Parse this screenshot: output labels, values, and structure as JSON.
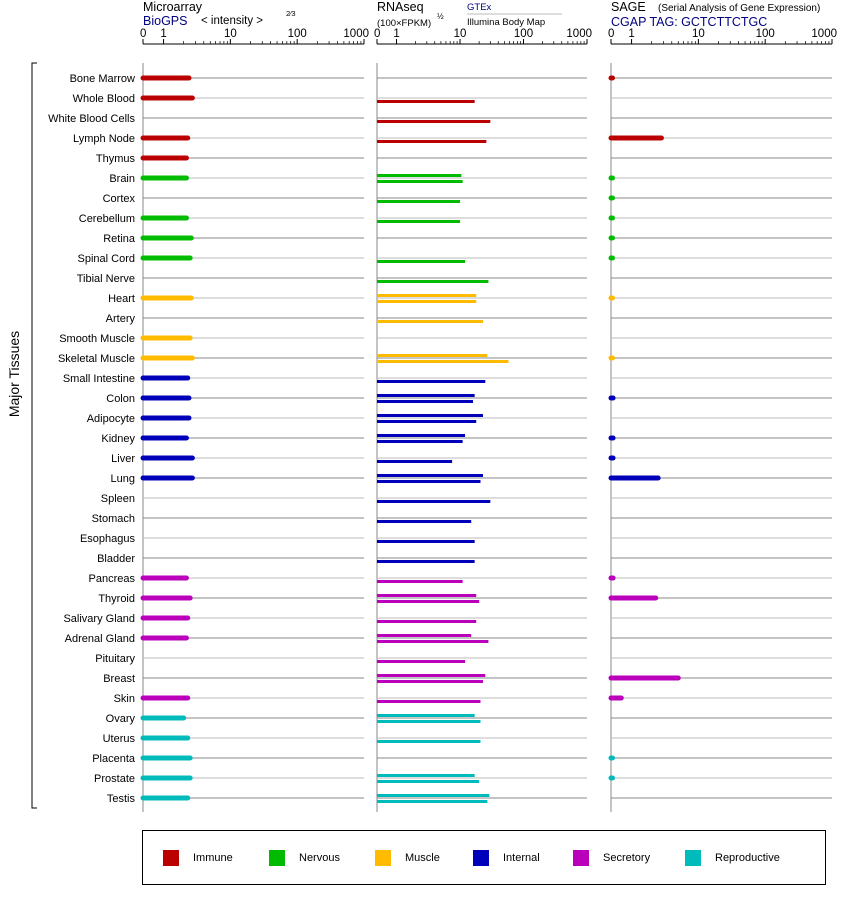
{
  "panels": {
    "microarray": {
      "title": "Microarray",
      "source": "BioGPS",
      "unit": "< intensity >",
      "unit_exp": "2⁄3",
      "ticks": [
        "0",
        "1",
        "10",
        "100",
        "1000"
      ]
    },
    "rnaseq": {
      "title": "RNAseq",
      "unit": "(100×FPKM)",
      "unit_exp": "½",
      "source_1": "GTEx",
      "source_2": "Illumina Body Map",
      "ticks": [
        "0",
        "1",
        "10",
        "100",
        "1000"
      ]
    },
    "sage": {
      "title": "SAGE",
      "subtitle": "(Serial Analysis of Gene Expression)",
      "tag": "CGAP TAG: GCTCTTCTGC",
      "ticks": [
        "0",
        "1",
        "10",
        "100",
        "1000"
      ]
    }
  },
  "y_group_label": "Major Tissues",
  "colors": {
    "Immune": "#bb0000",
    "Nervous": "#00bb00",
    "Muscle": "#ffbb00",
    "Internal": "#0000bb",
    "Secretory": "#bb00bb",
    "Reproductive": "#00bbbb"
  },
  "legend": [
    "Immune",
    "Nervous",
    "Muscle",
    "Internal",
    "Secretory",
    "Reproductive"
  ],
  "chart_data": {
    "type": "bar",
    "scale": "log-like, axis ticks 0, 1, 10, 100, 1000",
    "categories": [
      "Bone Marrow",
      "Whole Blood",
      "White Blood Cells",
      "Lymph Node",
      "Thymus",
      "Brain",
      "Cortex",
      "Cerebellum",
      "Retina",
      "Spinal Cord",
      "Tibial Nerve",
      "Heart",
      "Artery",
      "Smooth Muscle",
      "Skeletal Muscle",
      "Small Intestine",
      "Colon",
      "Adipocyte",
      "Kidney",
      "Liver",
      "Lung",
      "Spleen",
      "Stomach",
      "Esophagus",
      "Bladder",
      "Pancreas",
      "Thyroid",
      "Salivary Gland",
      "Adrenal Gland",
      "Pituitary",
      "Breast",
      "Skin",
      "Ovary",
      "Uterus",
      "Placenta",
      "Prostate",
      "Testis"
    ],
    "system": [
      "Immune",
      "Immune",
      "Immune",
      "Immune",
      "Immune",
      "Nervous",
      "Nervous",
      "Nervous",
      "Nervous",
      "Nervous",
      "Nervous",
      "Muscle",
      "Muscle",
      "Muscle",
      "Muscle",
      "Internal",
      "Internal",
      "Internal",
      "Internal",
      "Internal",
      "Internal",
      "Internal",
      "Internal",
      "Internal",
      "Internal",
      "Secretory",
      "Secretory",
      "Secretory",
      "Secretory",
      "Secretory",
      "Secretory",
      "Secretory",
      "Reproductive",
      "Reproductive",
      "Reproductive",
      "Reproductive",
      "Reproductive"
    ],
    "series": [
      {
        "name": "Microarray",
        "values": [
          2.4,
          2.7,
          null,
          2.3,
          2.2,
          2.2,
          null,
          2.2,
          2.6,
          2.5,
          null,
          2.6,
          null,
          2.5,
          2.7,
          2.3,
          2.4,
          2.4,
          2.2,
          2.7,
          2.7,
          null,
          null,
          null,
          null,
          2.2,
          2.5,
          2.3,
          2.2,
          null,
          null,
          2.3,
          2.0,
          2.3,
          2.5,
          2.5,
          2.3
        ]
      },
      {
        "name": "GTEx",
        "values": [
          null,
          null,
          null,
          null,
          null,
          10.5,
          null,
          null,
          null,
          null,
          null,
          18,
          null,
          null,
          27,
          null,
          17,
          23,
          12,
          null,
          23,
          null,
          null,
          null,
          null,
          null,
          18,
          null,
          15,
          null,
          25,
          null,
          17,
          null,
          null,
          17,
          29
        ]
      },
      {
        "name": "Illumina Body Map",
        "values": [
          null,
          17,
          30,
          26,
          null,
          11,
          10,
          10,
          null,
          12,
          28,
          18,
          23,
          null,
          58,
          25,
          16,
          18,
          11,
          7.5,
          21,
          30,
          15,
          17,
          17,
          11,
          20,
          18,
          28,
          12,
          23,
          21,
          21,
          21,
          null,
          20,
          27
        ]
      },
      {
        "name": "SAGE",
        "values": [
          0.05,
          null,
          null,
          2.8,
          null,
          0.05,
          0.05,
          0.05,
          0.05,
          0.05,
          null,
          0.03,
          null,
          null,
          0.03,
          null,
          0.1,
          null,
          0.1,
          0.1,
          2.5,
          null,
          null,
          null,
          null,
          0.1,
          2.3,
          null,
          null,
          null,
          5,
          0.5,
          null,
          null,
          0.05,
          0.05,
          null
        ]
      }
    ]
  }
}
